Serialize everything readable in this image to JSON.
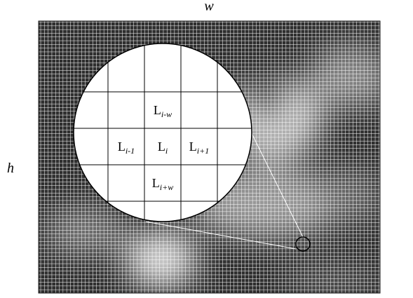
{
  "axes": {
    "width": "w",
    "height": "h"
  },
  "cells": [
    {
      "base": "L",
      "sub": "i-w"
    },
    {
      "base": "L",
      "sub": "i-1"
    },
    {
      "base": "L",
      "sub": "i"
    },
    {
      "base": "L",
      "sub": "i+1"
    },
    {
      "base": "L",
      "sub": "i+w"
    }
  ]
}
